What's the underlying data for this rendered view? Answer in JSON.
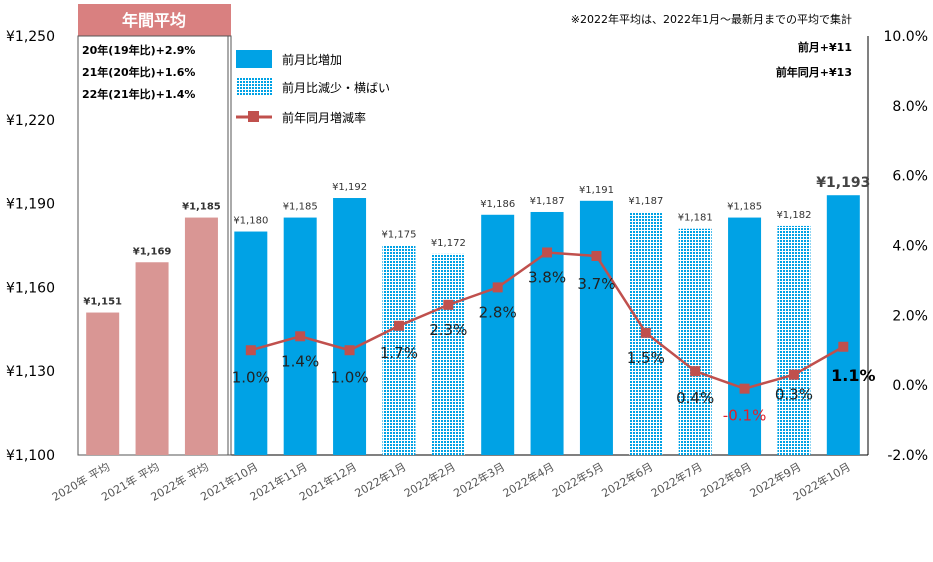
{
  "chart_data": {
    "type": "bar",
    "colors": {
      "increase": "#00a2e5",
      "decrease_flat": "#00a2e5",
      "annual": "#d99694",
      "yoy_line": "#c0504d",
      "annual_header": "#d98080",
      "negative_label": "#e0202a"
    },
    "categories": [
      "2020年 平均",
      "2021年 平均",
      "2022年 平均",
      "2021年10月",
      "2021年11月",
      "2021年12月",
      "2022年1月",
      "2022年2月",
      "2022年3月",
      "2022年4月",
      "2022年5月",
      "2022年6月",
      "2022年7月",
      "2022年8月",
      "2022年9月",
      "2022年10月"
    ],
    "values": [
      1151,
      1169,
      1185,
      1180,
      1185,
      1192,
      1175,
      1172,
      1186,
      1187,
      1191,
      1187,
      1181,
      1185,
      1182,
      1193
    ],
    "value_labels": [
      "¥1,151",
      "¥1,169",
      "¥1,185",
      "¥1,180",
      "¥1,185",
      "¥1,192",
      "¥1,175",
      "¥1,172",
      "¥1,186",
      "¥1,187",
      "¥1,191",
      "¥1,187",
      "¥1,181",
      "¥1,185",
      "¥1,182",
      "¥1,193"
    ],
    "bar_kinds": [
      "annual",
      "annual",
      "annual",
      "increase",
      "increase",
      "increase",
      "decrease",
      "decrease",
      "increase",
      "increase",
      "increase",
      "decrease",
      "decrease",
      "increase",
      "decrease",
      "increase"
    ],
    "yoy": {
      "values": [
        1.0,
        1.4,
        1.0,
        1.7,
        2.3,
        2.8,
        3.8,
        3.7,
        1.5,
        0.4,
        -0.1,
        0.3,
        1.1
      ],
      "labels": [
        "1.0%",
        "1.4%",
        "1.0%",
        "1.7%",
        "2.3%",
        "2.8%",
        "3.8%",
        "3.7%",
        "1.5%",
        "0.4%",
        "-0.1%",
        "0.3%",
        "1.1%"
      ]
    },
    "left_axis": {
      "ticks": [
        "¥1,100",
        "¥1,130",
        "¥1,160",
        "¥1,190",
        "¥1,220",
        "¥1,250"
      ],
      "ylim": [
        1100,
        1250
      ]
    },
    "right_axis": {
      "ticks": [
        "-2.0%",
        "0.0%",
        "2.0%",
        "4.0%",
        "6.0%",
        "8.0%",
        "10.0%"
      ],
      "ylim": [
        -2,
        10
      ]
    },
    "legend": {
      "items": [
        "前月比増加",
        "前月比減少・横ばい",
        "前年同月増減率"
      ],
      "placement": "top-left"
    }
  },
  "annual_box": {
    "title": "年間平均",
    "lines": [
      "20年(19年比)+2.9%",
      "21年(20年比)+1.6%",
      "22年(21年比)+1.4%"
    ]
  },
  "note": "※2022年平均は、2022年1月～最新月までの平均で集計",
  "summary": {
    "mom": "前月+¥11",
    "yoy": "前年同月+¥13"
  }
}
